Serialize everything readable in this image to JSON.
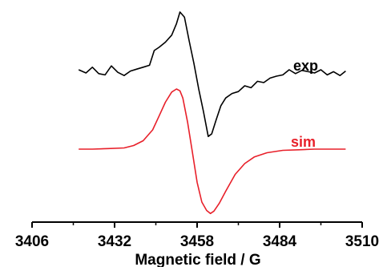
{
  "chart_data": {
    "type": "line",
    "title": "",
    "xlabel": "Magnetic field / G",
    "ylabel": "",
    "xlim": [
      3406,
      3510
    ],
    "x_ticks": [
      3406,
      3432,
      3458,
      3484,
      3510
    ],
    "x_tick_labels": [
      "3406",
      "3432",
      "3458",
      "3484",
      "3510"
    ],
    "grid": false,
    "legend": "none",
    "annotations": [
      "exp",
      "sim"
    ],
    "series": [
      {
        "name": "exp",
        "color": "#000000",
        "x": [
          3420.7,
          3423.0,
          3425.0,
          3427.0,
          3429.0,
          3431.0,
          3433.0,
          3435.0,
          3437.0,
          3439.0,
          3441.0,
          3443.0,
          3444.5,
          3446.0,
          3448.0,
          3450.0,
          3451.5,
          3452.6,
          3454.0,
          3455.5,
          3457.0,
          3458.5,
          3460.0,
          3461.5,
          3462.6,
          3464.0,
          3465.5,
          3467.0,
          3469.0,
          3471.0,
          3473.0,
          3475.0,
          3477.0,
          3479.0,
          3481.0,
          3483.0,
          3485.0,
          3487.0,
          3489.0,
          3491.0,
          3493.0,
          3495.0,
          3497.0,
          3499.0,
          3501.0,
          3503.0,
          3504.8
        ],
        "y": [
          0.1,
          0.05,
          0.14,
          0.04,
          0.02,
          0.16,
          0.06,
          0.01,
          0.08,
          0.11,
          0.14,
          0.17,
          0.4,
          0.45,
          0.53,
          0.64,
          0.82,
          1.0,
          0.92,
          0.55,
          0.2,
          -0.2,
          -0.55,
          -0.94,
          -0.9,
          -0.68,
          -0.46,
          -0.34,
          -0.27,
          -0.24,
          -0.15,
          -0.18,
          -0.08,
          -0.1,
          -0.03,
          0.0,
          0.02,
          0.1,
          0.04,
          0.09,
          0.07,
          0.05,
          0.1,
          0.02,
          0.07,
          0.01,
          0.08
        ]
      },
      {
        "name": "sim",
        "color": "#e8202a",
        "x": [
          3420.7,
          3425.0,
          3430.0,
          3435.0,
          3438.0,
          3441.0,
          3444.0,
          3446.0,
          3448.0,
          3450.0,
          3451.5,
          3452.6,
          3453.5,
          3455.0,
          3456.5,
          3458.0,
          3459.5,
          3461.0,
          3462.2,
          3463.3,
          3465.0,
          3467.0,
          3470.0,
          3473.0,
          3476.0,
          3480.0,
          3485.0,
          3490.0,
          3495.0,
          3500.0,
          3504.8
        ],
        "y": [
          0.0,
          0.0,
          0.01,
          0.02,
          0.06,
          0.14,
          0.32,
          0.55,
          0.78,
          0.95,
          1.0,
          0.97,
          0.85,
          0.45,
          -0.05,
          -0.55,
          -0.88,
          -1.02,
          -1.07,
          -1.03,
          -0.9,
          -0.7,
          -0.42,
          -0.24,
          -0.13,
          -0.06,
          -0.02,
          -0.01,
          0.0,
          0.0,
          0.0
        ]
      }
    ]
  }
}
